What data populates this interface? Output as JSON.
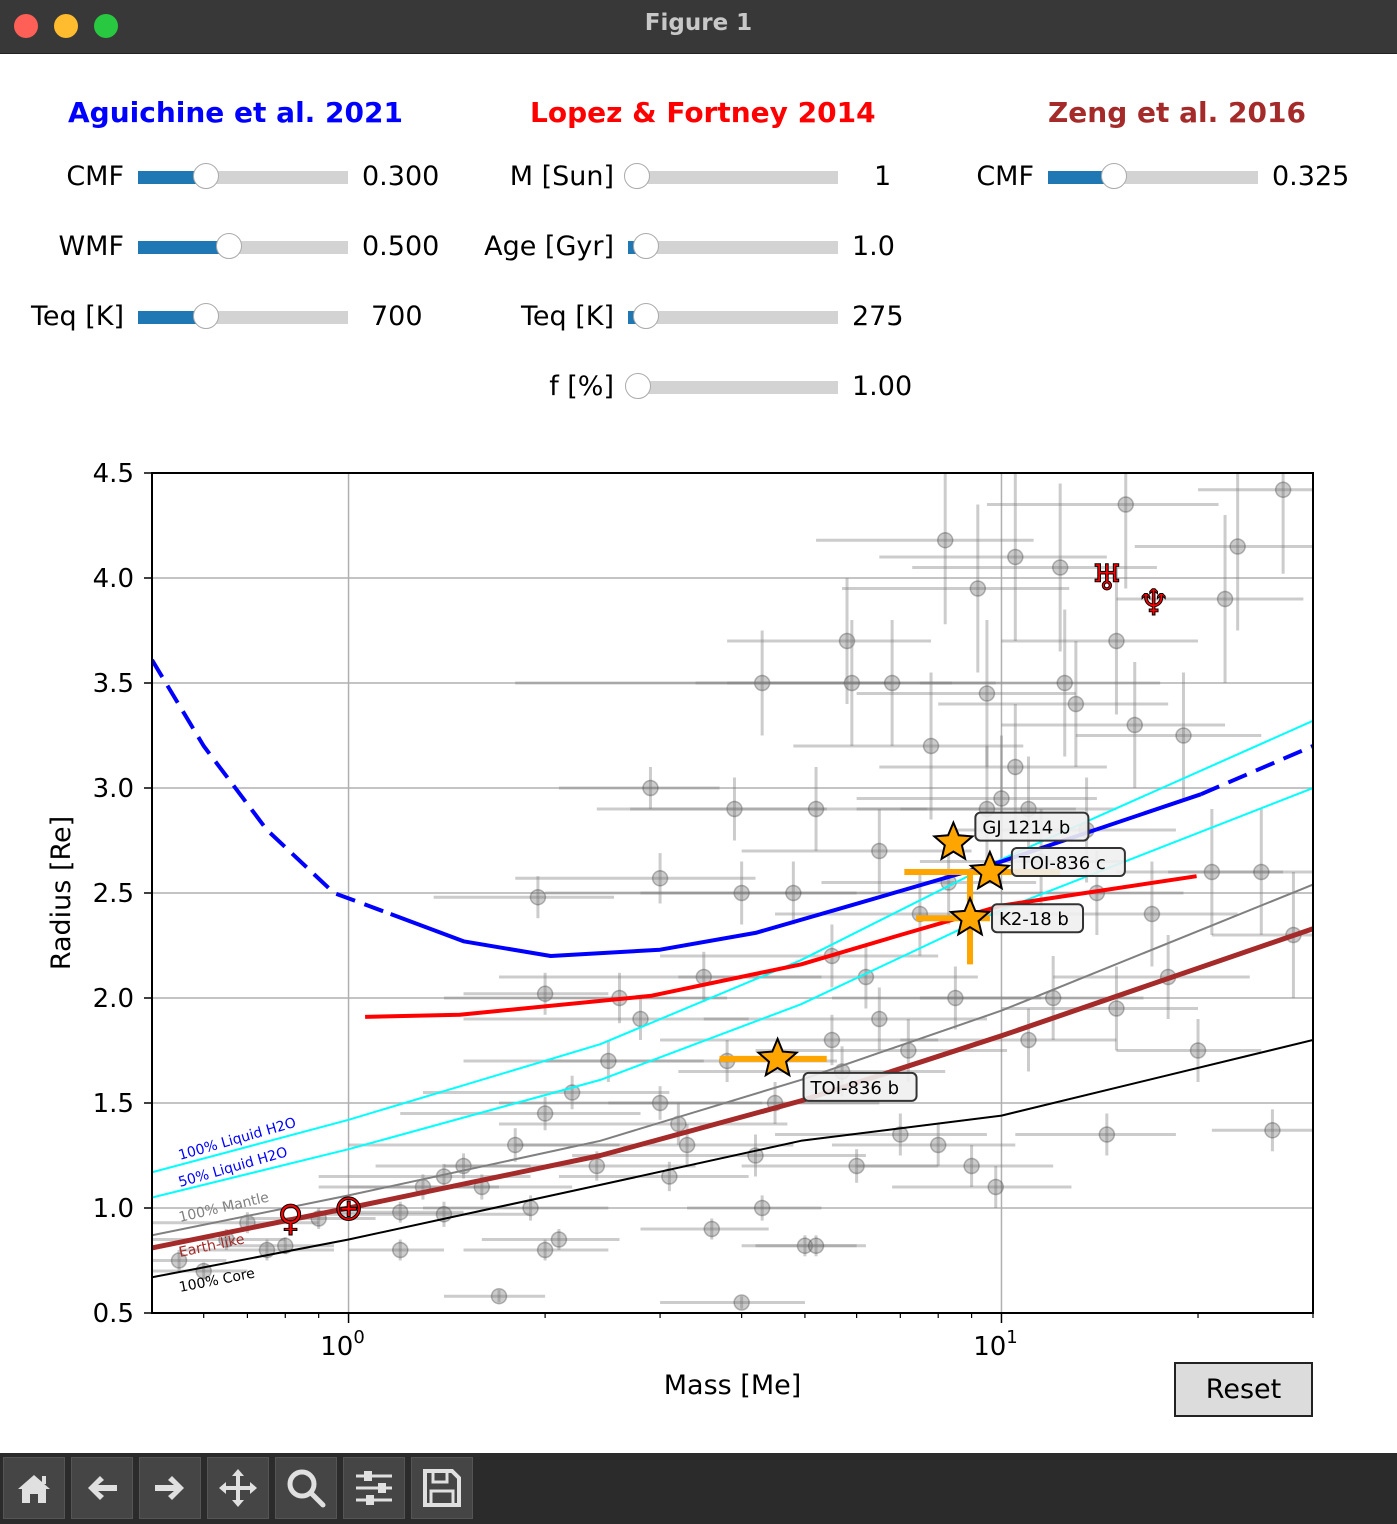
{
  "window": {
    "title": "Figure 1"
  },
  "panels": [
    {
      "title": "Aguichine et al. 2021",
      "color": "#0000ff",
      "sliders": [
        {
          "label": "CMF",
          "value": "0.300",
          "fraction": 0.33
        },
        {
          "label": "WMF",
          "value": "0.500",
          "fraction": 0.44
        },
        {
          "label": "Teq [K]",
          "value": "700",
          "fraction": 0.33
        }
      ]
    },
    {
      "title": "Lopez & Fortney 2014",
      "color": "#ff0000",
      "sliders": [
        {
          "label": "M [Sun]",
          "value": "1",
          "fraction": 0.0
        },
        {
          "label": "Age [Gyr]",
          "value": "1.0",
          "fraction": 0.09
        },
        {
          "label": "Teq [K]",
          "value": "275",
          "fraction": 0.09
        },
        {
          "label": "f [%]",
          "value": "1.00",
          "fraction": 0.05
        }
      ]
    },
    {
      "title": "Zeng et al. 2016",
      "color": "#a52a2a",
      "sliders": [
        {
          "label": "CMF",
          "value": "0.325",
          "fraction": 0.32
        }
      ]
    }
  ],
  "reset_label": "Reset",
  "toolbar": [
    "home-icon",
    "back-arrow-icon",
    "forward-arrow-icon",
    "pan-icon",
    "zoom-icon",
    "configure-subplots-icon",
    "save-icon"
  ],
  "chart_data": {
    "type": "scatter",
    "xlabel": "Mass [Me]",
    "ylabel": "Radius [Re]",
    "xscale": "log",
    "xlim": [
      0.5,
      30
    ],
    "ylim": [
      0.5,
      4.5
    ],
    "grid": true,
    "xticks": [
      {
        "base": "10",
        "exp": "0",
        "value": 1
      },
      {
        "base": "10",
        "exp": "1",
        "value": 10
      }
    ],
    "yticks": [
      "0.5",
      "1.0",
      "1.5",
      "2.0",
      "2.5",
      "3.0",
      "3.5",
      "4.0",
      "4.5"
    ],
    "curves": [
      {
        "label": "100% Core",
        "color": "#000000",
        "width": 2,
        "points": [
          [
            0.5,
            0.67
          ],
          [
            1,
            0.85
          ],
          [
            2.43,
            1.11
          ],
          [
            4.93,
            1.32
          ],
          [
            10,
            1.44
          ],
          [
            30,
            1.8
          ]
        ]
      },
      {
        "label": "Earth-like",
        "color": "#a52a2a",
        "width": 5,
        "points": [
          [
            0.5,
            0.81
          ],
          [
            1,
            1.0
          ],
          [
            2.43,
            1.25
          ],
          [
            4.93,
            1.51
          ],
          [
            10,
            1.82
          ],
          [
            30,
            2.33
          ]
        ]
      },
      {
        "label": "100% Mantle",
        "color": "#808080",
        "width": 2,
        "points": [
          [
            0.5,
            0.87
          ],
          [
            1,
            1.06
          ],
          [
            2.43,
            1.32
          ],
          [
            4.93,
            1.61
          ],
          [
            10,
            1.94
          ],
          [
            30,
            2.54
          ]
        ]
      },
      {
        "label": "50% Liquid H2O",
        "color": "#00ffff",
        "width": 2,
        "points": [
          [
            0.5,
            1.05
          ],
          [
            1,
            1.28
          ],
          [
            2.43,
            1.61
          ],
          [
            4.93,
            1.97
          ],
          [
            10,
            2.42
          ],
          [
            30,
            3.0
          ]
        ]
      },
      {
        "label": "100% Liquid H2O",
        "color": "#00ffff",
        "width": 2,
        "points": [
          [
            0.5,
            1.17
          ],
          [
            1,
            1.42
          ],
          [
            2.43,
            1.78
          ],
          [
            4.93,
            2.18
          ],
          [
            10,
            2.66
          ],
          [
            30,
            3.32
          ]
        ]
      },
      {
        "label": "",
        "model": "Lopez & Fortney 2014",
        "color": "#ff0000",
        "width": 4,
        "points": [
          [
            1.06,
            1.91
          ],
          [
            1.48,
            1.92
          ],
          [
            2.9,
            2.01
          ],
          [
            4.93,
            2.16
          ],
          [
            7.0,
            2.3
          ],
          [
            10,
            2.44
          ],
          [
            19.9,
            2.58
          ]
        ]
      },
      {
        "label": "",
        "model": "Aguichine et al. 2021",
        "color": "#0000ff",
        "width": 4,
        "dashed_points": [
          [
            0.5,
            3.61
          ],
          [
            0.6,
            3.2
          ],
          [
            0.75,
            2.8
          ],
          [
            0.95,
            2.5
          ],
          [
            1.16,
            2.4
          ]
        ],
        "points": [
          [
            1.16,
            2.4
          ],
          [
            1.5,
            2.27
          ],
          [
            2.04,
            2.2
          ],
          [
            3,
            2.23
          ],
          [
            4.2,
            2.31
          ],
          [
            5.87,
            2.44
          ],
          [
            10,
            2.65
          ],
          [
            20.2,
            2.97
          ]
        ],
        "dashed_end": [
          [
            20.2,
            2.97
          ],
          [
            30,
            3.2
          ]
        ]
      }
    ],
    "highlighted_planets": [
      {
        "name": "GJ 1214 b",
        "mass": 8.44,
        "radius": 2.74,
        "mass_err": null,
        "radius_err": null
      },
      {
        "name": "TOI-836 c",
        "mass": 9.6,
        "radius": 2.6,
        "mass_range": [
          7.1,
          12.3
        ],
        "radius_range": null
      },
      {
        "name": "K2-18 b",
        "mass": 8.95,
        "radius": 2.38,
        "mass_range": [
          7.4,
          9.6
        ],
        "radius_range": [
          2.16,
          2.6
        ]
      },
      {
        "name": "TOI-836 b",
        "mass": 4.54,
        "radius": 1.71,
        "mass_range": [
          3.7,
          5.4
        ],
        "radius_range": null
      }
    ],
    "solar_system": [
      {
        "name": "Venus",
        "symbol": "♀",
        "mass": 0.815,
        "radius": 0.95
      },
      {
        "name": "Earth",
        "symbol": "⊕",
        "mass": 1.0,
        "radius": 1.0
      },
      {
        "name": "Uranus",
        "symbol": "♅",
        "mass": 14.5,
        "radius": 4.0
      },
      {
        "name": "Neptune",
        "symbol": "♆",
        "mass": 17.1,
        "radius": 3.88
      }
    ],
    "exoplanets": [
      [
        0.55,
        0.75,
        0.1,
        0.05
      ],
      [
        0.6,
        0.7,
        0.1,
        0.04
      ],
      [
        0.65,
        0.85,
        0.15,
        0.05
      ],
      [
        0.75,
        0.8,
        0.2,
        0.05
      ],
      [
        0.8,
        0.82,
        0.15,
        0.04
      ],
      [
        0.7,
        0.93,
        0.2,
        0.05
      ],
      [
        1.2,
        0.98,
        0.3,
        0.05
      ],
      [
        1.2,
        0.8,
        0.2,
        0.05
      ],
      [
        1.3,
        1.1,
        0.4,
        0.06
      ],
      [
        1.4,
        1.15,
        0.5,
        0.06
      ],
      [
        1.5,
        1.2,
        0.4,
        0.06
      ],
      [
        1.6,
        1.1,
        0.6,
        0.06
      ],
      [
        1.7,
        0.58,
        0.3,
        0.03
      ],
      [
        1.9,
        1.0,
        0.6,
        0.06
      ],
      [
        2.0,
        0.8,
        0.5,
        0.05
      ],
      [
        2.1,
        0.85,
        0.5,
        0.05
      ],
      [
        2.0,
        1.45,
        0.8,
        0.08
      ],
      [
        2.2,
        1.55,
        0.9,
        0.08
      ],
      [
        2.0,
        2.02,
        0.5,
        0.1
      ],
      [
        1.95,
        2.48,
        0.6,
        0.1
      ],
      [
        2.4,
        1.2,
        1.0,
        0.07
      ],
      [
        2.6,
        2.0,
        1.2,
        0.12
      ],
      [
        2.8,
        1.9,
        1.3,
        0.1
      ],
      [
        2.9,
        3.0,
        0.8,
        0.1
      ],
      [
        3.0,
        2.57,
        1.2,
        0.12
      ],
      [
        3.0,
        1.5,
        1.3,
        0.08
      ],
      [
        3.1,
        1.15,
        1.0,
        0.07
      ],
      [
        3.3,
        1.3,
        1.5,
        0.1
      ],
      [
        3.5,
        2.1,
        1.8,
        0.12
      ],
      [
        3.6,
        0.9,
        0.8,
        0.05
      ],
      [
        3.8,
        1.7,
        1.8,
        0.1
      ],
      [
        3.9,
        2.9,
        1.5,
        0.15
      ],
      [
        4.0,
        0.55,
        1.0,
        0.03
      ],
      [
        4.0,
        2.5,
        2.0,
        0.15
      ],
      [
        4.2,
        1.25,
        2.0,
        0.1
      ],
      [
        4.3,
        1.0,
        1.0,
        0.06
      ],
      [
        4.3,
        3.5,
        2.5,
        0.25
      ],
      [
        4.8,
        2.5,
        2.0,
        0.15
      ],
      [
        5.0,
        0.82,
        1.0,
        0.05
      ],
      [
        5.2,
        0.82,
        1.0,
        0.05
      ],
      [
        5.2,
        2.9,
        2.5,
        0.2
      ],
      [
        5.5,
        1.8,
        2.5,
        0.12
      ],
      [
        5.7,
        1.65,
        2.5,
        0.12
      ],
      [
        5.8,
        3.7,
        2.0,
        0.3
      ],
      [
        5.9,
        3.5,
        2.5,
        0.3
      ],
      [
        6.0,
        1.2,
        2.0,
        0.08
      ],
      [
        6.2,
        2.1,
        3.0,
        0.15
      ],
      [
        6.5,
        2.7,
        2.5,
        0.2
      ],
      [
        6.8,
        3.5,
        3.0,
        0.3
      ],
      [
        7.0,
        1.35,
        2.5,
        0.1
      ],
      [
        7.5,
        2.4,
        3.0,
        0.2
      ],
      [
        7.8,
        3.2,
        3.0,
        0.35
      ],
      [
        8.0,
        1.3,
        2.5,
        0.1
      ],
      [
        8.2,
        4.18,
        3.0,
        0.4
      ],
      [
        8.5,
        2.0,
        3.0,
        0.15
      ],
      [
        9.0,
        1.2,
        3.0,
        0.1
      ],
      [
        9.2,
        3.95,
        3.5,
        0.4
      ],
      [
        9.5,
        3.45,
        3.5,
        0.35
      ],
      [
        9.8,
        1.1,
        3.0,
        0.1
      ],
      [
        10.0,
        2.95,
        4.0,
        0.3
      ],
      [
        10.5,
        3.1,
        4.0,
        0.3
      ],
      [
        10.5,
        4.1,
        4.0,
        0.4
      ],
      [
        11.0,
        2.9,
        4.0,
        0.25
      ],
      [
        11.0,
        1.8,
        4.0,
        0.15
      ],
      [
        11.5,
        2.65,
        4.0,
        0.25
      ],
      [
        12.0,
        2.0,
        4.5,
        0.2
      ],
      [
        12.5,
        3.5,
        5.0,
        0.35
      ],
      [
        13,
        3.4,
        5.0,
        0.3
      ],
      [
        13.5,
        2.8,
        5.0,
        0.25
      ],
      [
        14,
        2.5,
        5.0,
        0.2
      ],
      [
        14.5,
        1.35,
        4.0,
        0.1
      ],
      [
        15,
        3.7,
        5.0,
        0.35
      ],
      [
        15.5,
        4.35,
        6.0,
        0.4
      ],
      [
        16,
        3.3,
        6.0,
        0.3
      ],
      [
        17,
        2.4,
        6.0,
        0.25
      ],
      [
        18,
        2.1,
        6.0,
        0.2
      ],
      [
        19,
        3.25,
        6.0,
        0.3
      ],
      [
        20,
        1.75,
        5.0,
        0.15
      ],
      [
        21,
        2.6,
        6.0,
        0.3
      ],
      [
        22,
        3.9,
        7.0,
        0.4
      ],
      [
        23,
        4.15,
        7.0,
        0.4
      ],
      [
        25,
        2.6,
        7.0,
        0.3
      ],
      [
        26,
        1.37,
        5.0,
        0.1
      ],
      [
        27,
        4.42,
        7.0,
        0.4
      ],
      [
        28,
        2.3,
        7.0,
        0.3
      ],
      [
        15,
        1.95,
        5.0,
        0.2
      ],
      [
        12.3,
        4.05,
        5.0,
        0.4
      ],
      [
        9.5,
        2.9,
        3.5,
        0.3
      ],
      [
        8.3,
        2.55,
        3.0,
        0.2
      ],
      [
        7.2,
        1.75,
        3.0,
        0.15
      ],
      [
        6.5,
        1.9,
        3.0,
        0.15
      ],
      [
        5.5,
        2.2,
        2.5,
        0.15
      ],
      [
        4.5,
        1.5,
        2.0,
        0.1
      ],
      [
        3.2,
        1.4,
        1.5,
        0.1
      ],
      [
        2.5,
        1.7,
        1.0,
        0.1
      ],
      [
        1.8,
        1.3,
        0.8,
        0.08
      ],
      [
        1.4,
        0.97,
        0.5,
        0.06
      ],
      [
        0.9,
        0.95,
        0.2,
        0.05
      ]
    ]
  }
}
